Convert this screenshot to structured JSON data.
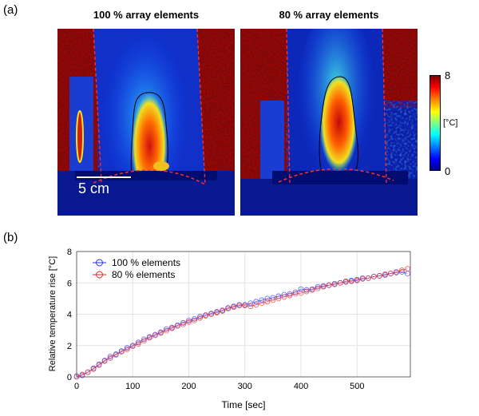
{
  "panel_a": {
    "label": "(a)",
    "images": [
      {
        "title": "100 % array elements",
        "scale_bar": "5 cm"
      },
      {
        "title": "80 % array elements"
      }
    ],
    "colorbar": {
      "max": "8",
      "min": "0",
      "unit": "[°C]",
      "colormap": "jet"
    }
  },
  "panel_b": {
    "label": "(b)"
  },
  "chart_data": {
    "type": "scatter-line",
    "xlabel": "Time [sec]",
    "ylabel": "Relative temperature rise [°C]",
    "xlim": [
      0,
      595
    ],
    "ylim": [
      0,
      8
    ],
    "xticks": [
      "0",
      "100",
      "200",
      "300",
      "400",
      "500"
    ],
    "yticks": [
      "0",
      "2",
      "4",
      "6",
      "8"
    ],
    "grid": true,
    "legend_position": "top-left",
    "x": [
      0,
      10,
      20,
      30,
      40,
      50,
      60,
      70,
      80,
      90,
      100,
      110,
      120,
      130,
      140,
      150,
      160,
      170,
      180,
      190,
      200,
      210,
      220,
      230,
      240,
      250,
      260,
      270,
      280,
      290,
      300,
      310,
      320,
      330,
      340,
      350,
      360,
      370,
      380,
      390,
      400,
      410,
      420,
      430,
      440,
      450,
      460,
      470,
      480,
      490,
      500,
      510,
      520,
      530,
      540,
      550,
      560,
      570,
      580,
      590
    ],
    "series": [
      {
        "name": "100 % elements",
        "color": "#2233ee",
        "values": [
          0.05,
          0.1,
          0.3,
          0.55,
          0.8,
          1.05,
          1.3,
          1.45,
          1.65,
          1.85,
          2.0,
          2.2,
          2.4,
          2.55,
          2.7,
          2.85,
          3.05,
          3.15,
          3.3,
          3.45,
          3.6,
          3.7,
          3.85,
          3.95,
          4.05,
          4.15,
          4.25,
          4.4,
          4.5,
          4.6,
          4.6,
          4.7,
          4.8,
          4.9,
          5.0,
          5.05,
          5.15,
          5.25,
          5.3,
          5.4,
          5.6,
          5.55,
          5.6,
          5.75,
          5.8,
          5.85,
          5.95,
          6.0,
          6.1,
          6.15,
          6.2,
          6.3,
          6.3,
          6.4,
          6.45,
          6.5,
          6.6,
          6.65,
          6.7,
          6.6
        ]
      },
      {
        "name": "80 % elements",
        "color": "#ee2222",
        "values": [
          0.0,
          0.15,
          0.3,
          0.5,
          0.75,
          1.0,
          1.2,
          1.4,
          1.6,
          1.75,
          1.95,
          2.1,
          2.3,
          2.5,
          2.65,
          2.8,
          2.95,
          3.1,
          3.25,
          3.35,
          3.5,
          3.6,
          3.75,
          3.9,
          4.0,
          4.1,
          4.2,
          4.35,
          4.45,
          4.55,
          4.55,
          4.5,
          4.6,
          4.7,
          4.8,
          4.9,
          5.0,
          5.1,
          5.2,
          5.3,
          5.35,
          5.45,
          5.55,
          5.65,
          5.75,
          5.85,
          5.9,
          6.0,
          6.05,
          6.1,
          6.15,
          6.25,
          6.3,
          6.4,
          6.45,
          6.55,
          6.6,
          6.7,
          6.8,
          6.9
        ]
      }
    ]
  }
}
